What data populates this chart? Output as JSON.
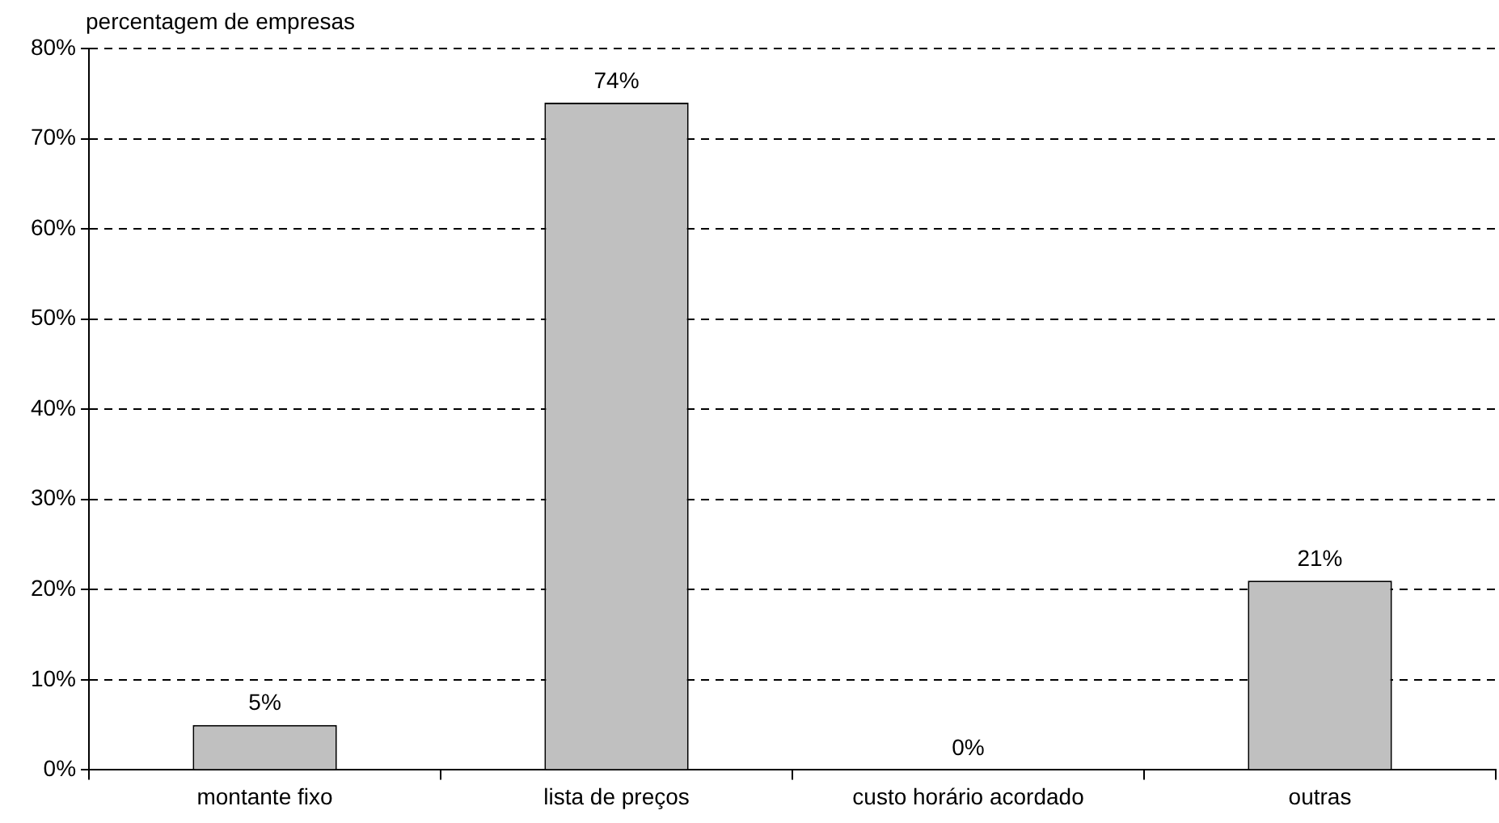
{
  "chart_data": {
    "type": "bar",
    "ylabel": "percentagem de empresas",
    "categories": [
      "montante fixo",
      "lista de preços",
      "custo horário acordado",
      "outras"
    ],
    "values": [
      5,
      74,
      0,
      21
    ],
    "color": "#c0c0c0",
    "value_labels": [
      "5%",
      "74%",
      "0%",
      "21%"
    ],
    "ylim": [
      0,
      80
    ],
    "yticks": [
      {
        "value": 0,
        "label": "0%"
      },
      {
        "value": 10,
        "label": "10%"
      },
      {
        "value": 20,
        "label": "20%"
      },
      {
        "value": 30,
        "label": "30%"
      },
      {
        "value": 40,
        "label": "40%"
      },
      {
        "value": 50,
        "label": "50%"
      },
      {
        "value": 60,
        "label": "60%"
      },
      {
        "value": 70,
        "label": "70%"
      },
      {
        "value": 80,
        "label": "80%"
      }
    ],
    "grid": "y",
    "legend": false
  }
}
